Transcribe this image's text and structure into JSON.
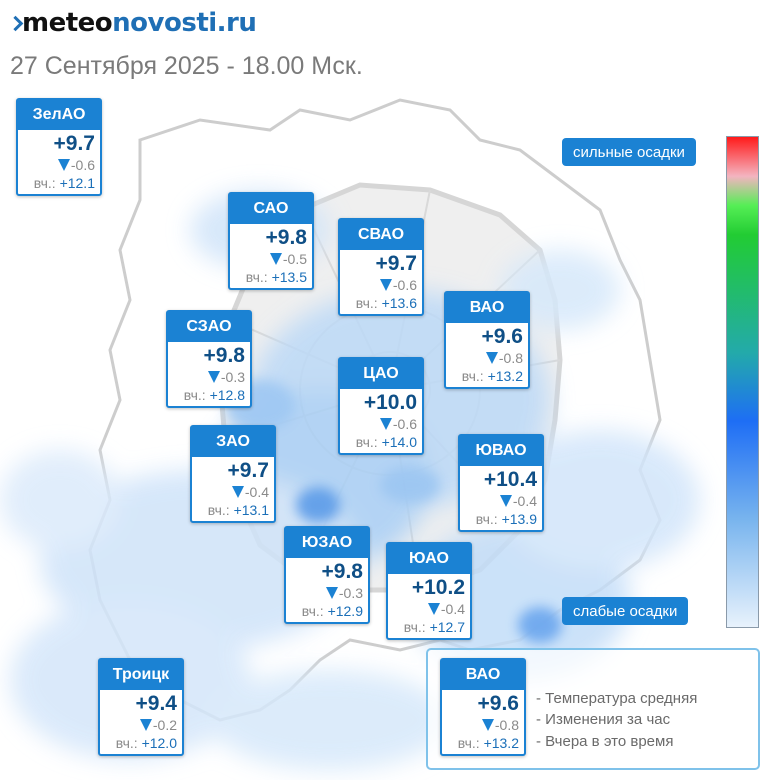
{
  "header": {
    "logo_part1": "meteo",
    "logo_part2": "novosti.ru",
    "subtitle": "27 Сентября 2025 - 18.00 Мск."
  },
  "districts": [
    {
      "name": "ЗелАО",
      "temp": "+9.7",
      "delta": "-0.6",
      "yesterday_prefix": "вч.:",
      "yesterday": "+12.1"
    },
    {
      "name": "САО",
      "temp": "+9.8",
      "delta": "-0.5",
      "yesterday_prefix": "вч.:",
      "yesterday": "+13.5"
    },
    {
      "name": "СВАО",
      "temp": "+9.7",
      "delta": "-0.6",
      "yesterday_prefix": "вч.:",
      "yesterday": "+13.6"
    },
    {
      "name": "ВАО",
      "temp": "+9.6",
      "delta": "-0.8",
      "yesterday_prefix": "вч.:",
      "yesterday": "+13.2"
    },
    {
      "name": "СЗАО",
      "temp": "+9.8",
      "delta": "-0.3",
      "yesterday_prefix": "вч.:",
      "yesterday": "+12.8"
    },
    {
      "name": "ЦАО",
      "temp": "+10.0",
      "delta": "-0.6",
      "yesterday_prefix": "вч.:",
      "yesterday": "+14.0"
    },
    {
      "name": "ЗАО",
      "temp": "+9.7",
      "delta": "-0.4",
      "yesterday_prefix": "вч.:",
      "yesterday": "+13.1"
    },
    {
      "name": "ЮВАО",
      "temp": "+10.4",
      "delta": "-0.4",
      "yesterday_prefix": "вч.:",
      "yesterday": "+13.9"
    },
    {
      "name": "ЮЗАО",
      "temp": "+9.8",
      "delta": "-0.3",
      "yesterday_prefix": "вч.:",
      "yesterday": "+12.9"
    },
    {
      "name": "ЮАО",
      "temp": "+10.2",
      "delta": "-0.4",
      "yesterday_prefix": "вч.:",
      "yesterday": "+12.7"
    },
    {
      "name": "Троицк",
      "temp": "+9.4",
      "delta": "-0.2",
      "yesterday_prefix": "вч.:",
      "yesterday": "+12.0"
    }
  ],
  "precip_scale": {
    "top_label": "сильные осадки",
    "bottom_label": "слабые осадки",
    "colors": [
      "#ff1a1a",
      "#55ee55",
      "#23aaaa",
      "#1e6ef5",
      "#e8f2fc"
    ]
  },
  "legend": {
    "sample": {
      "name": "ВАО",
      "temp": "+9.6",
      "delta": "-0.8",
      "yesterday_prefix": "вч.:",
      "yesterday": "+13.2"
    },
    "items": [
      "- Температура средняя",
      "- Изменения за час",
      "- Вчера в это время"
    ]
  },
  "icons": {
    "trend": "down-triangle-icon",
    "logo": "chevron-mark-icon"
  },
  "colors": {
    "accent": "#1b82d3",
    "temp_text": "#0f4f86",
    "subtitle": "#7a7a7a",
    "logo_blue": "#1f6fb5"
  }
}
